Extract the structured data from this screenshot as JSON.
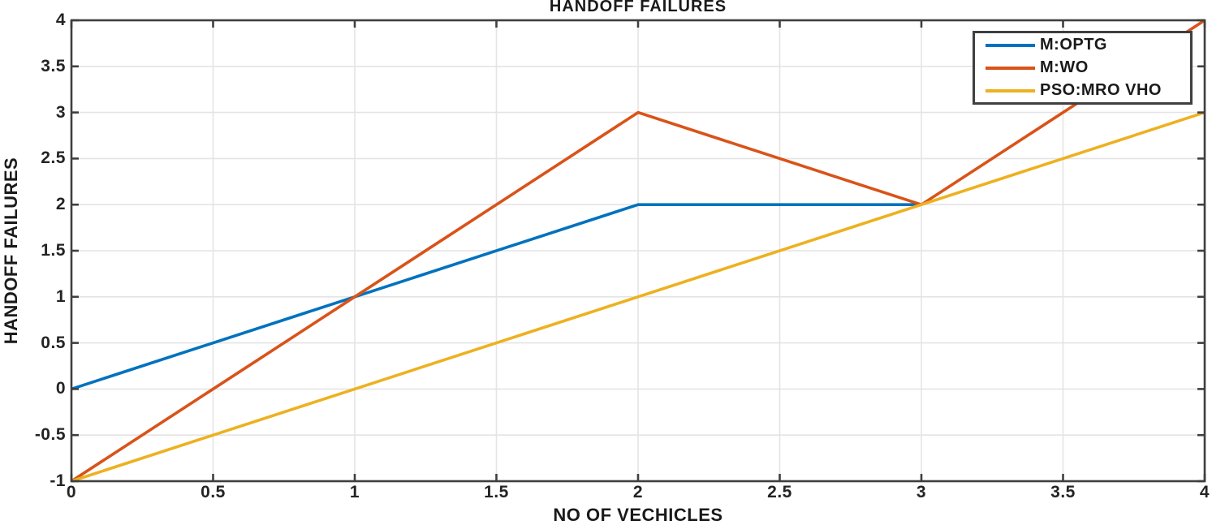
{
  "chart_data": {
    "type": "line",
    "title": "HANDOFF FAILURES",
    "xlabel": "NO OF VECHICLES",
    "ylabel": "HANDOFF FAILURES",
    "xlim": [
      0,
      4
    ],
    "ylim": [
      -1,
      4
    ],
    "xticks": [
      0,
      0.5,
      1,
      1.5,
      2,
      2.5,
      3,
      3.5,
      4
    ],
    "yticks": [
      -1,
      -0.5,
      0,
      0.5,
      1,
      1.5,
      2,
      2.5,
      3,
      3.5,
      4
    ],
    "grid": true,
    "legend_position": "top-right",
    "series": [
      {
        "name": "M:OPTG",
        "color": "#0072BD",
        "x": [
          0,
          1,
          2,
          3
        ],
        "y": [
          0,
          1,
          2,
          2
        ]
      },
      {
        "name": "M:WO",
        "color": "#D95319",
        "x": [
          0,
          1,
          2,
          3,
          4
        ],
        "y": [
          -1,
          1,
          3,
          2,
          4
        ]
      },
      {
        "name": "PSO:MRO VHO",
        "color": "#EDB120",
        "x": [
          0,
          1,
          2,
          3,
          4
        ],
        "y": [
          -1,
          0,
          1,
          2,
          3
        ]
      }
    ],
    "colors": {
      "axis_border": "#3f3f3f",
      "tick_marks": "#3f3f3f",
      "grid_lines": "#e4e4e4",
      "text": "#1a1a1a",
      "background": "#ffffff"
    }
  }
}
